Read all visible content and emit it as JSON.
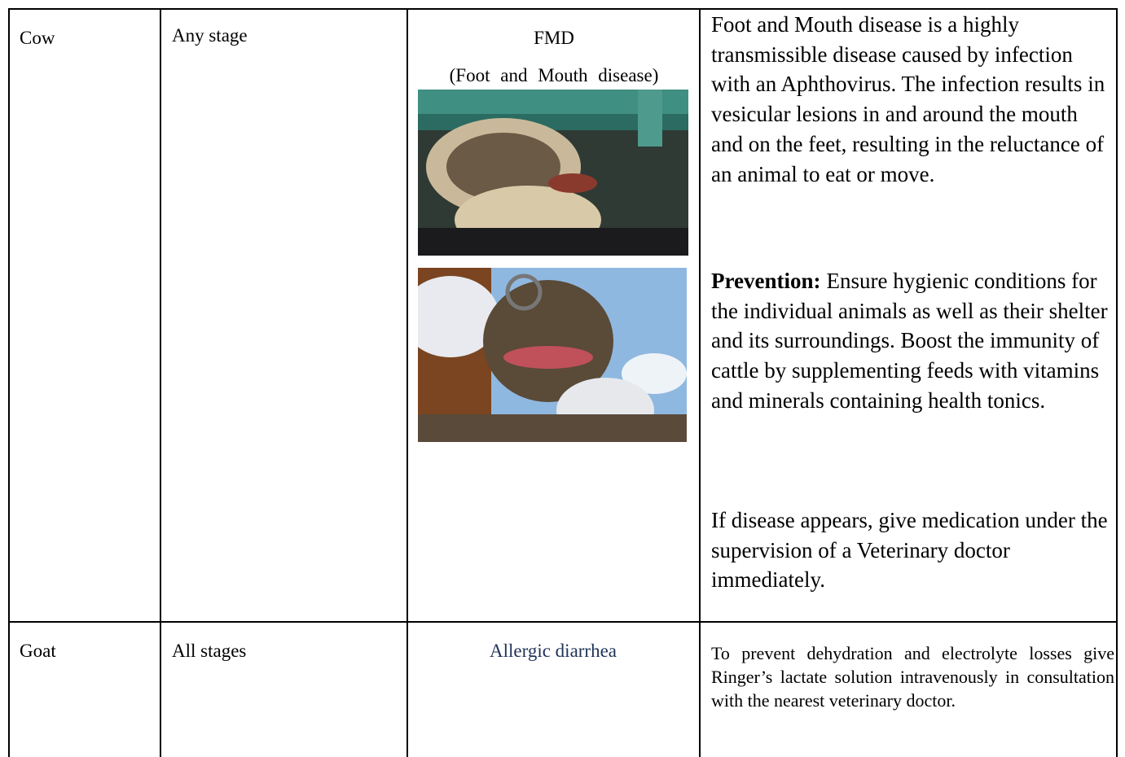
{
  "table": {
    "rows": [
      [
        "Cow",
        "Any stage",
        {
          "title": "FMD",
          "subtitle": "(Foot and Mouth disease)"
        },
        {
          "description": "Foot and Mouth disease is a highly transmissible disease caused by infection with an Aphthovirus. The infection results in vesicular lesions in and around the mouth and on the feet, resulting in the reluctance of an animal to eat or move.",
          "prevention_label": "Prevention:",
          "prevention": "Ensure hygienic conditions for the individual animals as well as their shelter and its surroundings. Boost the immunity of cattle by supplementing feeds with vitamins and minerals containing health tonics.",
          "advice": "If disease appears, give medication under the supervision of a Veterinary doctor immediately."
        }
      ],
      [
        "Goat",
        "All stages",
        "Allergic diarrhea",
        "To prevent dehydration and electrolyte losses give Ringer’s lactate solution intravenously in consultation with the nearest veterinary doctor."
      ]
    ]
  }
}
